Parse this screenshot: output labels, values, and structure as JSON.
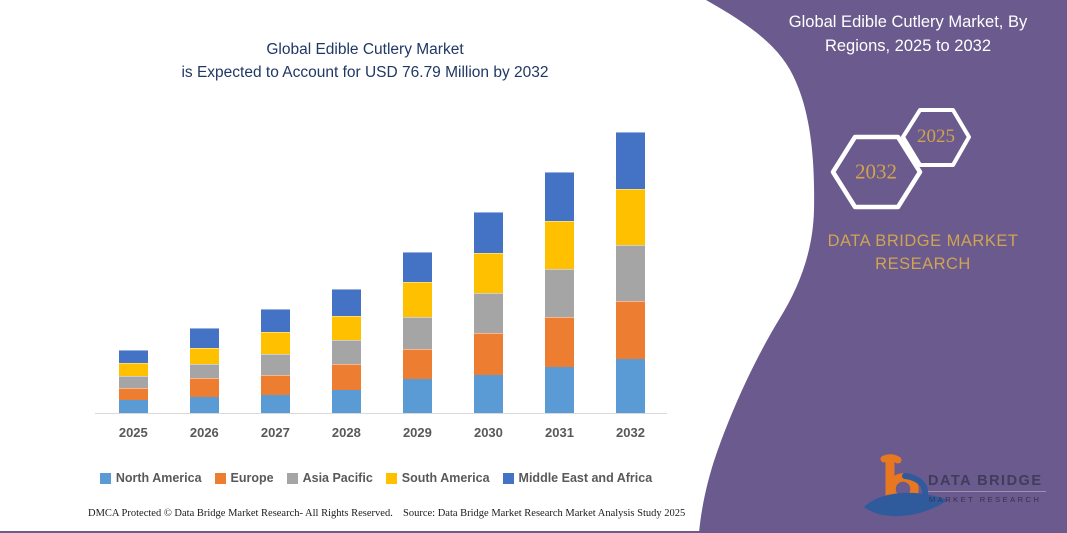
{
  "page": {
    "background": "#ffffff",
    "bottom_line_color": "#6a5a8d"
  },
  "chart": {
    "title_line1": "Global Edible Cutlery Market",
    "title_line2": "is Expected to Account for USD 76.79 Million by 2032",
    "title_color": "#1f3864",
    "axis_label_color": "#595959",
    "axis_line_color": "#d9d9d9"
  },
  "chart_data": {
    "type": "bar",
    "stacked": true,
    "unit": "USD Million",
    "title": "Global Edible Cutlery Market, By Regions, 2025 to 2032",
    "xlabel": "",
    "ylabel": "",
    "grid": false,
    "legend_position": "bottom",
    "ylim": [
      0,
      80
    ],
    "categories": [
      "2025",
      "2026",
      "2027",
      "2028",
      "2029",
      "2030",
      "2031",
      "2032"
    ],
    "series": [
      {
        "name": "North America",
        "color": "#5b9bd5",
        "values": [
          3.7,
          4.4,
          5.1,
          6.5,
          9.4,
          10.6,
          12.7,
          15.1
        ]
      },
      {
        "name": "Europe",
        "color": "#ed7d31",
        "values": [
          3.0,
          5.1,
          5.1,
          6.7,
          8.1,
          11.3,
          13.7,
          15.6
        ]
      },
      {
        "name": "Asia Pacific",
        "color": "#a5a5a5",
        "values": [
          2.9,
          3.6,
          5.7,
          6.5,
          8.5,
          10.9,
          13.1,
          15.3
        ]
      },
      {
        "name": "South America",
        "color": "#ffc000",
        "values": [
          3.6,
          4.2,
          5.8,
          6.5,
          9.5,
          10.8,
          12.9,
          15.5
        ]
      },
      {
        "name": "Middle East and Africa",
        "color": "#4472c4",
        "values": [
          3.3,
          5.1,
          6.0,
          7.0,
          8.1,
          11.1,
          13.3,
          15.29
        ]
      }
    ],
    "totals": [
      16.5,
      22.4,
      27.7,
      33.2,
      43.6,
      54.7,
      65.7,
      76.79
    ],
    "annotation": "is Expected to Account for USD 76.79 Million by 2032"
  },
  "side_panel": {
    "background": "#6a5a8d",
    "heading": "Global Edible Cutlery Market, By Regions, 2025 to 2032",
    "heading_color": "#ffffff",
    "hexagons": [
      {
        "label": "2032"
      },
      {
        "label": "2025"
      }
    ],
    "hexagon_text_color": "#d2a24c",
    "brand_line1": "DATA BRIDGE MARKET",
    "brand_line2": "RESEARCH",
    "brand_color": "#d0a452",
    "logo": {
      "wordmark": "DATA BRIDGE",
      "subtext": "MARKET RESEARCH",
      "b_color": "#e87722",
      "d_color": "#2f5b9d"
    }
  },
  "footer": {
    "left": "DMCA Protected © Data Bridge Market Research-  All Rights Reserved.",
    "right": "Source: Data Bridge Market Research  Market Analysis Study 2025"
  }
}
